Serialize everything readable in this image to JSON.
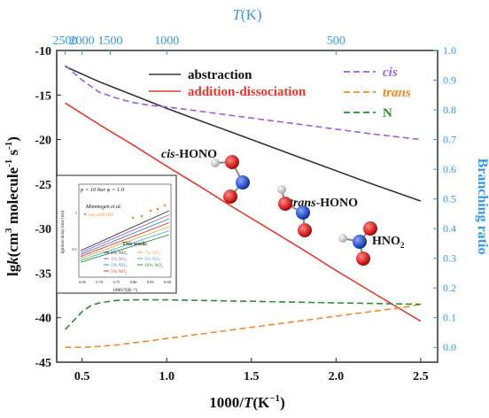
{
  "chart_data": {
    "type": "line",
    "bottom_axis": {
      "label_prefix": "1000/",
      "label_italic": "T",
      "label_unit": "(K",
      "label_unit_sup": "−1",
      "label_close": ")",
      "range": [
        0.35,
        2.6
      ],
      "ticks": [
        0.5,
        1.0,
        1.5,
        2.0,
        2.5
      ],
      "tick_labels": [
        "0.5",
        "1.0",
        "1.5",
        "2.0",
        "2.5"
      ]
    },
    "top_axis": {
      "label_italic": "T",
      "label_unit": "(K)",
      "ticks": [
        500,
        1000,
        1500,
        2000,
        2500
      ],
      "tick_labels": [
        "500",
        "1000",
        "1500",
        "2000",
        "2500"
      ],
      "color": "#3399e6"
    },
    "left_axis": {
      "label_main": "lg",
      "label_italic": "k",
      "label_unit": "(cm",
      "label_sup1": "3",
      "label_mid": " molecule",
      "label_sup2": "-1",
      "label_s": " s",
      "label_sup3": "-1",
      "label_close": ")",
      "range": [
        -45,
        -10
      ],
      "ticks": [
        -45,
        -40,
        -35,
        -30,
        -25,
        -20,
        -15,
        -10
      ],
      "tick_labels": [
        "-45",
        "-40",
        "-35",
        "-30",
        "-25",
        "-20",
        "-15",
        "-10"
      ]
    },
    "right_axis": {
      "label": "Branching ratio",
      "range": [
        -0.05,
        1.0
      ],
      "ticks": [
        0.0,
        0.1,
        0.2,
        0.3,
        0.4,
        0.5,
        0.6,
        0.7,
        0.8,
        0.9,
        1.0
      ],
      "tick_labels": [
        "0.0",
        "0.1",
        "0.2",
        "0.3",
        "0.4",
        "0.5",
        "0.6",
        "0.7",
        "0.8",
        "0.9",
        "1.0"
      ],
      "color": "#3399e6"
    },
    "series": [
      {
        "name": "abstraction",
        "axis": "left",
        "color": "#333333",
        "dash": "solid",
        "x": [
          0.4,
          0.6,
          0.8,
          1.0,
          1.2,
          1.4,
          1.6,
          1.8,
          2.0,
          2.2,
          2.5
        ],
        "y": [
          -11.8,
          -13.5,
          -15.0,
          -16.5,
          -17.9,
          -19.3,
          -20.7,
          -22.1,
          -23.5,
          -24.9,
          -26.9
        ]
      },
      {
        "name": "addition-dissociation",
        "axis": "left",
        "color": "#e8362c",
        "dash": "solid",
        "x": [
          0.4,
          0.6,
          0.8,
          1.0,
          1.2,
          1.4,
          1.6,
          1.8,
          2.0,
          2.2,
          2.5
        ],
        "y": [
          -15.9,
          -18.3,
          -20.6,
          -23.0,
          -25.3,
          -27.7,
          -30.0,
          -32.3,
          -34.7,
          -37.0,
          -40.4
        ]
      },
      {
        "name": "cis",
        "axis": "right",
        "color": "#9b5fe0",
        "dash": "dashed",
        "x": [
          0.4,
          0.5,
          0.6,
          0.7,
          0.8,
          0.9,
          1.0,
          1.2,
          1.4,
          1.6,
          1.8,
          2.0,
          2.2,
          2.5
        ],
        "y": [
          0.95,
          0.9,
          0.86,
          0.84,
          0.825,
          0.815,
          0.81,
          0.795,
          0.78,
          0.765,
          0.75,
          0.735,
          0.72,
          0.7
        ]
      },
      {
        "name": "trans",
        "axis": "right",
        "color": "#f58a1f",
        "dash": "dashed",
        "x": [
          0.4,
          0.5,
          0.6,
          0.7,
          0.8,
          0.9,
          1.0,
          1.2,
          1.4,
          1.6,
          1.8,
          2.0,
          2.2,
          2.4,
          2.5
        ],
        "y": [
          0.0,
          0.0,
          0.003,
          0.008,
          0.015,
          0.022,
          0.03,
          0.045,
          0.06,
          0.075,
          0.09,
          0.105,
          0.12,
          0.135,
          0.145
        ]
      },
      {
        "name": "N",
        "axis": "right",
        "color": "#2e8b2e",
        "dash": "dashed",
        "x": [
          0.4,
          0.45,
          0.5,
          0.55,
          0.6,
          0.7,
          0.8,
          0.9,
          1.0,
          1.2,
          1.4,
          1.6,
          1.8,
          2.0,
          2.2,
          2.5
        ],
        "y": [
          0.06,
          0.09,
          0.12,
          0.14,
          0.15,
          0.158,
          0.16,
          0.16,
          0.16,
          0.158,
          0.156,
          0.154,
          0.152,
          0.15,
          0.148,
          0.145
        ]
      }
    ],
    "legend_left": [
      {
        "name": "abstraction",
        "color": "#333333"
      },
      {
        "name": "addition-dissociation",
        "color": "#e8362c"
      }
    ],
    "legend_right": [
      {
        "name": "cis",
        "color": "#9b5fe0"
      },
      {
        "name": "trans",
        "color": "#f58a1f"
      },
      {
        "name": "N",
        "color": "#2e8b2e"
      }
    ],
    "annotations": {
      "cis_hono_prefix": "cis",
      "cis_hono_suffix": "-HONO",
      "trans_hono_prefix": "trans",
      "trans_hono_suffix": "-HONO",
      "hno2_main": "HNO",
      "hno2_sub": "2"
    },
    "inset": {
      "condition": "p = 10 bar  φ = 1.0",
      "ylabel": "Ignition delay time (ms)",
      "xlabel": "1000/T(K⁻¹)",
      "x_ticks": [
        "0.65",
        "0.70",
        "0.75",
        "0.80",
        "0.85",
        "0.90"
      ],
      "y_ticks": [
        "0.1",
        "1"
      ],
      "ref_label": "Mimmegen et al.",
      "ref_sub": "exp with NO",
      "this_work": "This work:",
      "legend": [
        {
          "label": "0% NO₂",
          "color": "#333333"
        },
        {
          "label": "1% NO₂",
          "color": "#9b5fe0"
        },
        {
          "label": "2% NO₂",
          "color": "#3b7fd6"
        },
        {
          "label": "5% NO₂",
          "color": "#e8362c"
        },
        {
          "label": "7% NO₂",
          "color": "#e3a82b"
        },
        {
          "label": "9% NO₂",
          "color": "#2fb7c9"
        },
        {
          "label": "10% NO₂",
          "color": "#2e8b2e"
        }
      ]
    }
  }
}
